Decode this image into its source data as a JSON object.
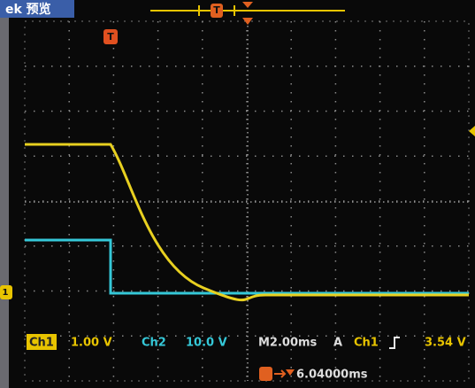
{
  "header": {
    "title": "ek 预览"
  },
  "markers": {
    "trigger_top": "T",
    "trigger_position": "T",
    "ch1_ground": "1"
  },
  "status": {
    "ch1_label": "Ch1",
    "ch1_scale": "1.00 V",
    "ch2_label": "Ch2",
    "ch2_scale": "10.0 V",
    "timebase": "M2.00ms",
    "mode": "A",
    "trigger_source": "Ch1",
    "trigger_level": "3.54 V",
    "trigger_offset": "6.04000ms"
  }
}
